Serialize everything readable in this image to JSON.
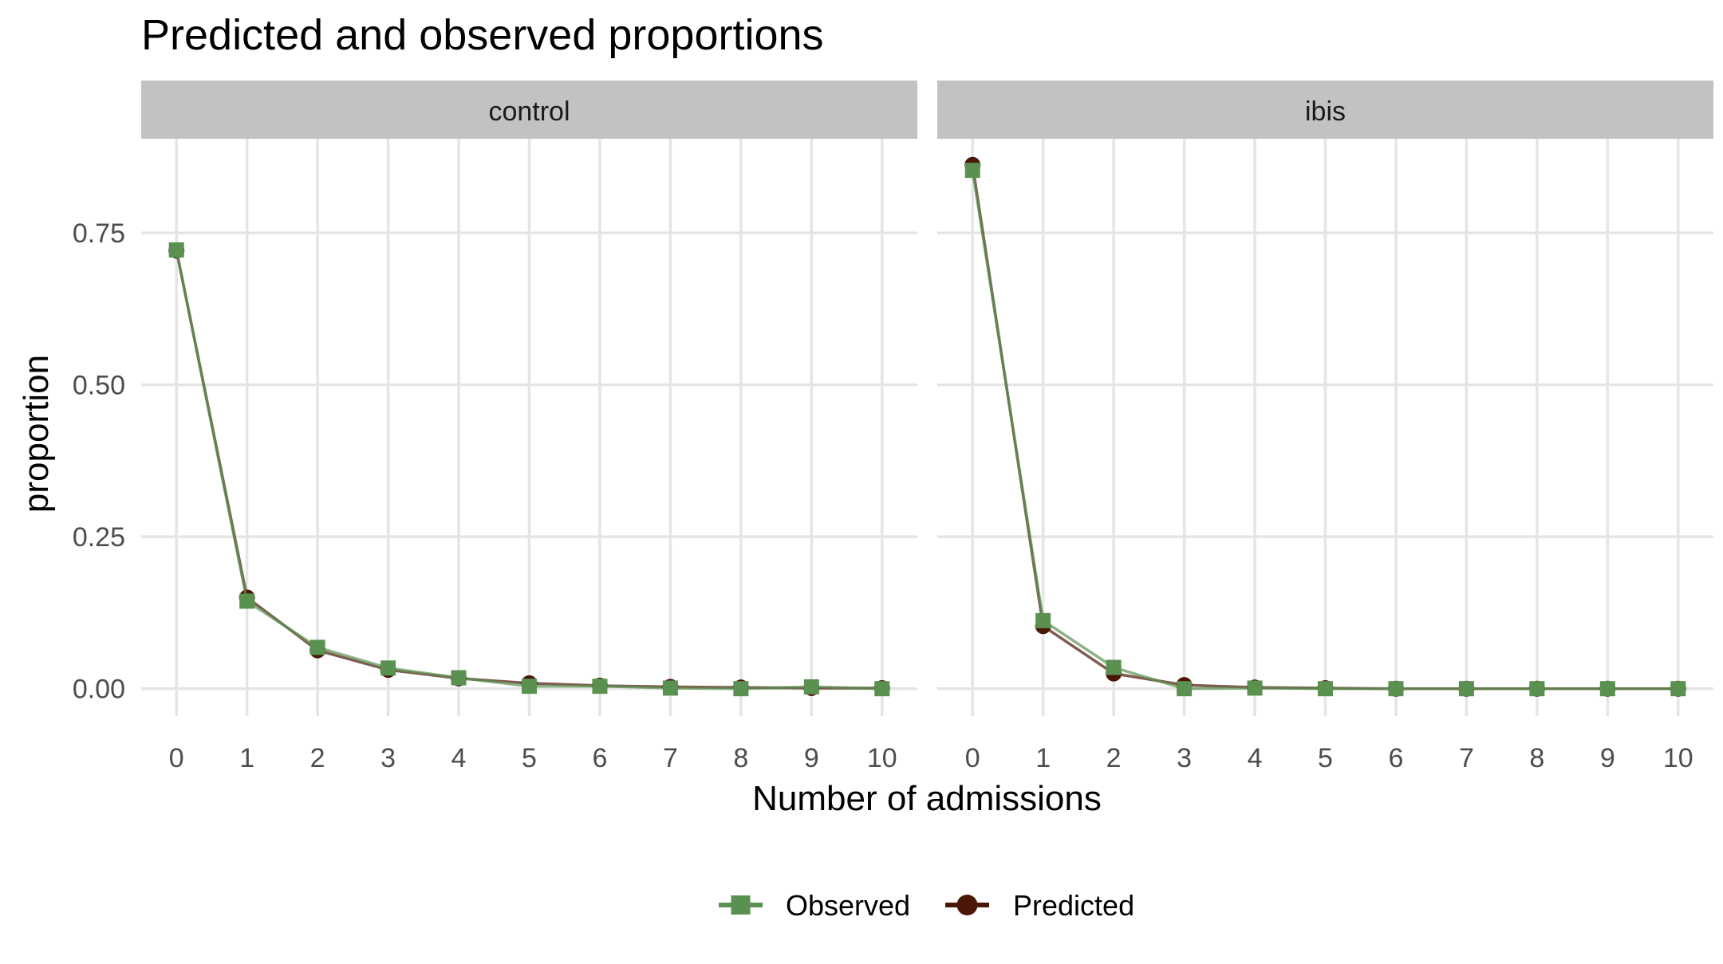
{
  "chart_data": {
    "type": "line",
    "title": "Predicted and observed proportions",
    "xlabel": "Number of admissions",
    "ylabel": "proportion",
    "x": [
      0,
      1,
      2,
      3,
      4,
      5,
      6,
      7,
      8,
      9,
      10
    ],
    "x_ticks": [
      "0",
      "1",
      "2",
      "3",
      "4",
      "5",
      "6",
      "7",
      "8",
      "9",
      "10"
    ],
    "y_ticks": [
      "0.00",
      "0.25",
      "0.50",
      "0.75"
    ],
    "y_tick_values": [
      0,
      0.25,
      0.5,
      0.75
    ],
    "xlim": [
      -0.5,
      10.5
    ],
    "ylim": [
      -0.045,
      0.905
    ],
    "grid": true,
    "legend_position": "bottom",
    "colors": {
      "Observed": "#5a9150",
      "Predicted": "#4a1606",
      "strip_bg": "#c2c2c2"
    },
    "panels": [
      {
        "label": "control",
        "series": [
          {
            "name": "Observed",
            "marker": "square",
            "values": [
              0.722,
              0.144,
              0.068,
              0.034,
              0.018,
              0.004,
              0.004,
              0.001,
              0.0,
              0.003,
              0.0
            ]
          },
          {
            "name": "Predicted",
            "marker": "circle",
            "values": [
              0.721,
              0.15,
              0.063,
              0.031,
              0.017,
              0.009,
              0.005,
              0.003,
              0.002,
              0.001,
              0.001
            ]
          }
        ]
      },
      {
        "label": "ibis",
        "series": [
          {
            "name": "Observed",
            "marker": "square",
            "values": [
              0.853,
              0.112,
              0.035,
              0.0,
              0.001,
              0.0,
              0.0,
              0.0,
              0.0,
              0.0,
              0.0
            ]
          },
          {
            "name": "Predicted",
            "marker": "circle",
            "values": [
              0.862,
              0.103,
              0.025,
              0.006,
              0.002,
              0.001,
              0.0,
              0.0,
              0.0,
              0.0,
              0.0
            ]
          }
        ]
      }
    ]
  }
}
